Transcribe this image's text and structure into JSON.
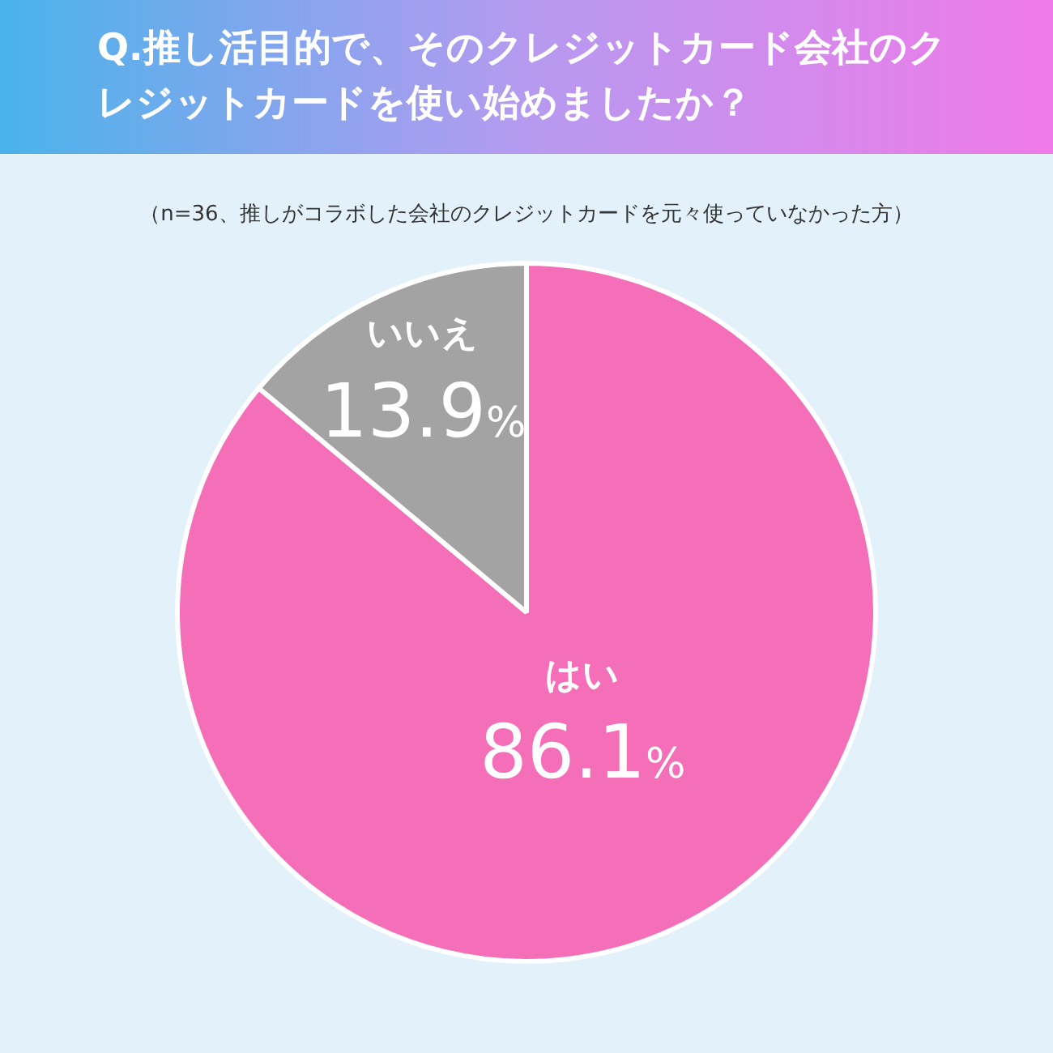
{
  "chart_data": {
    "type": "pie",
    "title": "Q.推し活目的で、そのクレジットカード会社のクレジットカードを使い始めましたか？",
    "subtitle": "（n=36、推しがコラボした会社のクレジットカードを元々使っていなかった方）",
    "categories": [
      "はい",
      "いいえ"
    ],
    "values": [
      86.1,
      13.9
    ],
    "colors": [
      "#f56eb8",
      "#a3a3a3"
    ],
    "value_labels": [
      "86.1%",
      "13.9%"
    ],
    "legend": false
  }
}
